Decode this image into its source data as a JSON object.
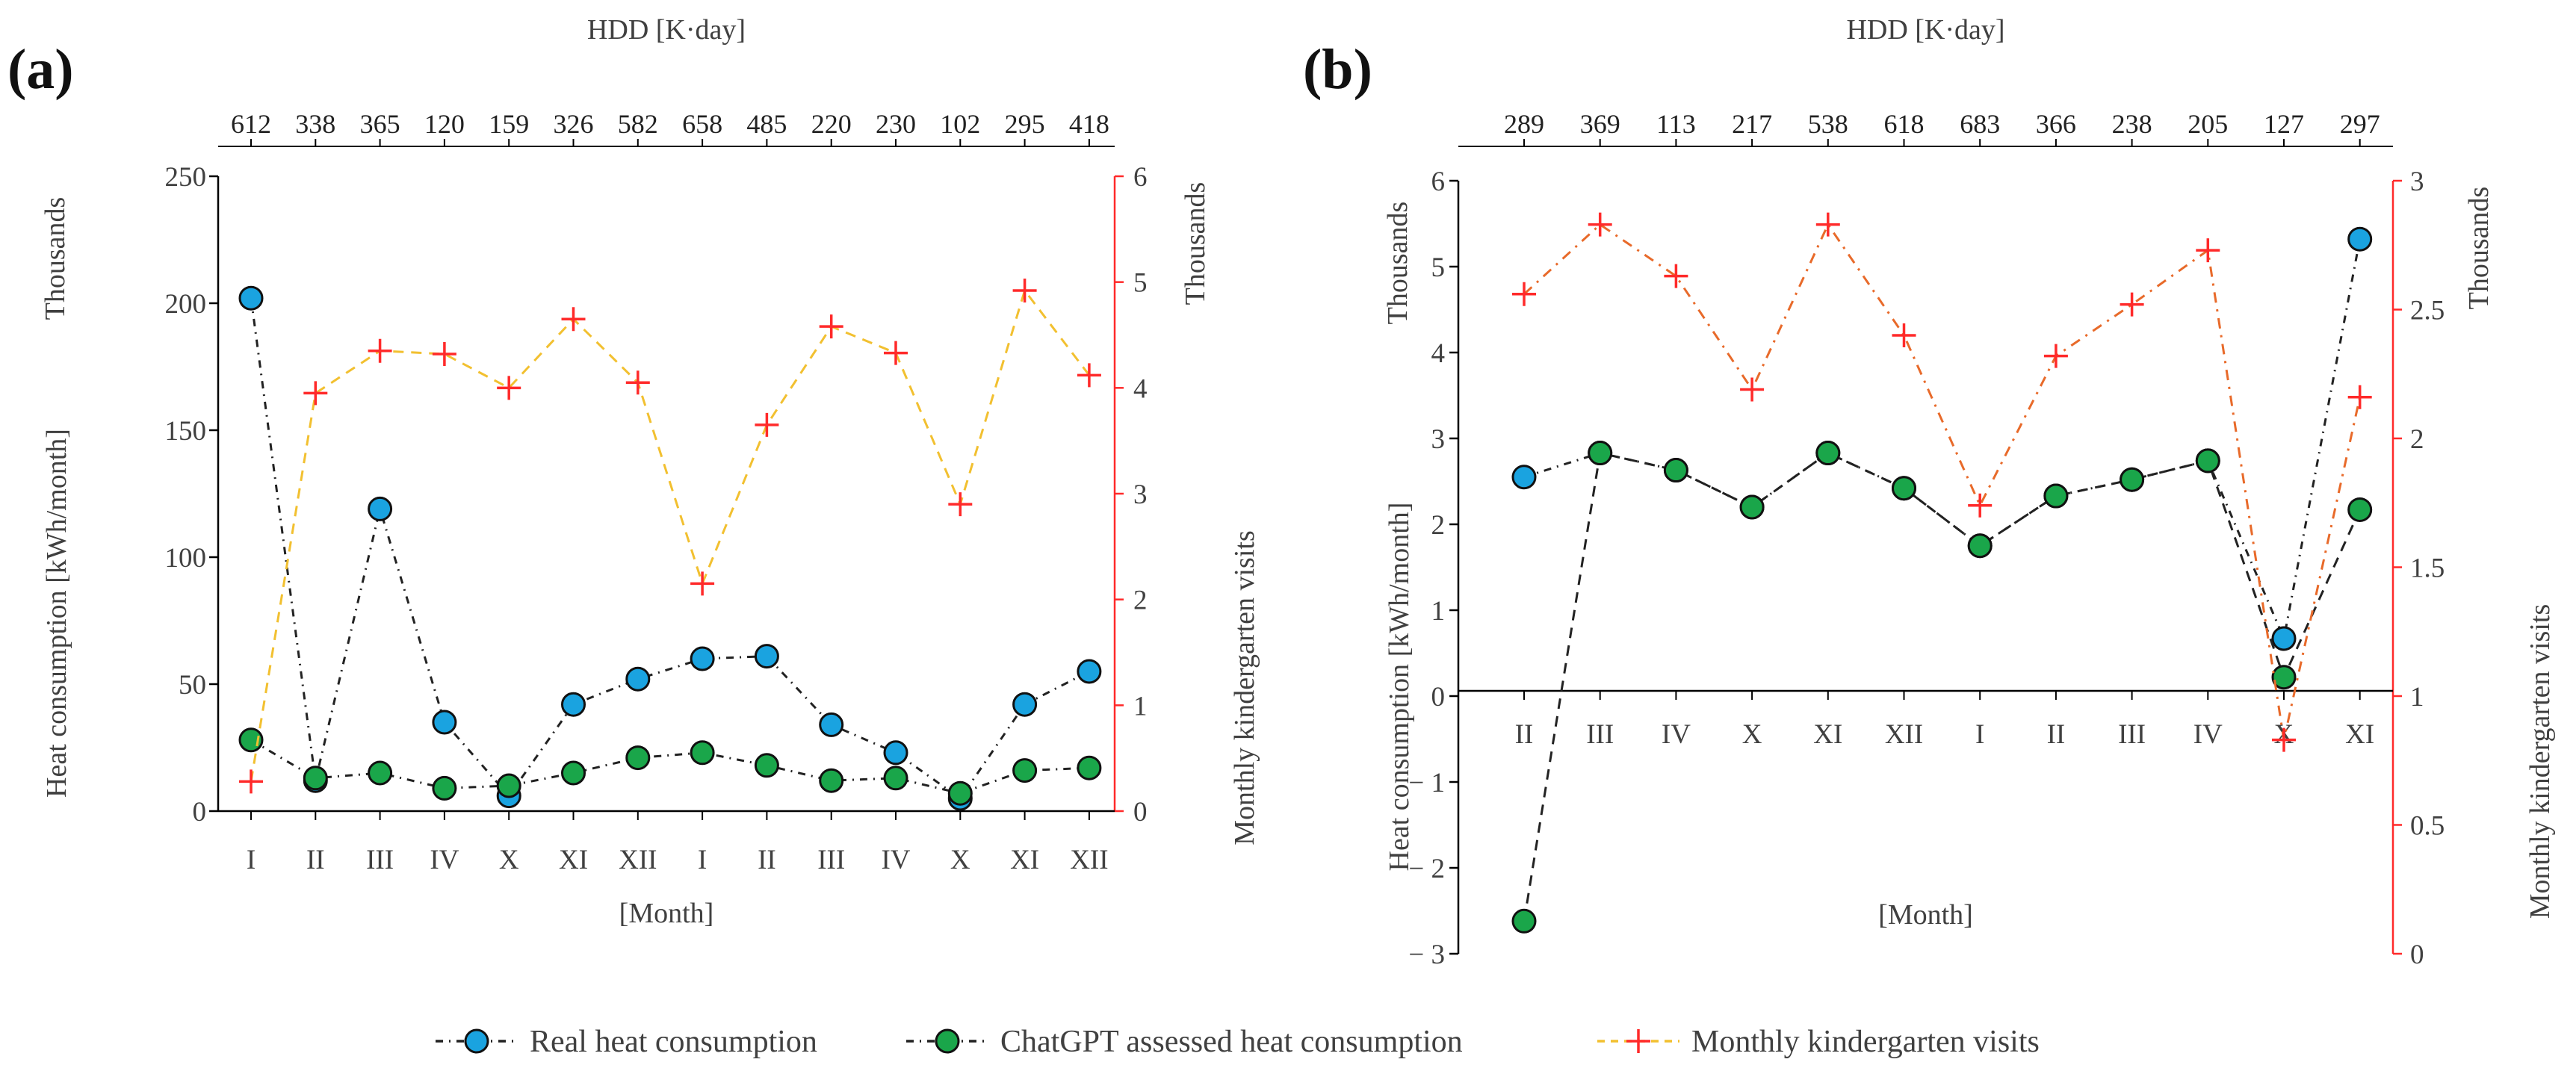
{
  "chart_data": [
    {
      "panel": "(a)",
      "type": "line",
      "top_axis_title": "HDD [K·day]",
      "top_axis_values": [
        "612",
        "338",
        "365",
        "120",
        "159",
        "326",
        "582",
        "658",
        "485",
        "220",
        "230",
        "102",
        "295",
        "418"
      ],
      "categories": [
        "I",
        "II",
        "III",
        "IV",
        "X",
        "XI",
        "XII",
        "I",
        "II",
        "III",
        "IV",
        "X",
        "XI",
        "XII"
      ],
      "xlabel": "[Month]",
      "ylabel_left": "Heat consumption [kWh/month]",
      "ylabel_left_unit": "Thousands",
      "ylim_left": [
        0,
        250
      ],
      "yticks_left": [
        "0",
        "50",
        "100",
        "150",
        "200",
        "250"
      ],
      "ylabel_right": "Monthly kindergarten visits",
      "ylabel_right_unit": "Thousands",
      "ylim_right": [
        0,
        6
      ],
      "yticks_right": [
        "0",
        "1",
        "2",
        "3",
        "4",
        "5",
        "6"
      ],
      "series": [
        {
          "name": "Real heat consumption",
          "axis": "left",
          "color": "#1aa3e0",
          "values": [
            202,
            12,
            119,
            35,
            6,
            42,
            52,
            60,
            61,
            34,
            23,
            5,
            42,
            55
          ]
        },
        {
          "name": "ChatGPT assessed heat consumption",
          "axis": "left",
          "color": "#1aa64a",
          "values": [
            28,
            13,
            15,
            9,
            10,
            15,
            21,
            23,
            18,
            12,
            13,
            7,
            16,
            17
          ]
        },
        {
          "name": "Monthly kindergarten visits",
          "axis": "right",
          "color": "#f2c030",
          "values": [
            0.28,
            3.95,
            4.35,
            4.32,
            4.0,
            4.65,
            4.05,
            2.15,
            3.65,
            4.58,
            4.33,
            2.9,
            4.92,
            4.12
          ]
        }
      ]
    },
    {
      "panel": "(b)",
      "type": "line",
      "top_axis_title": "HDD [K·day]",
      "top_axis_values": [
        "289",
        "369",
        "113",
        "217",
        "538",
        "618",
        "683",
        "366",
        "238",
        "205",
        "127",
        "297"
      ],
      "categories": [
        "II",
        "III",
        "IV",
        "X",
        "XI",
        "XII",
        "I",
        "II",
        "III",
        "IV",
        "X",
        "XI"
      ],
      "xlabel": "[Month]",
      "ylabel_left": "Heat consumption [kWh/month]",
      "ylabel_left_unit": "Thousands",
      "ylim_left": [
        -3,
        6
      ],
      "yticks_left": [
        "− 3",
        "− 2",
        "− 1",
        "0",
        "1",
        "2",
        "3",
        "4",
        "5",
        "6"
      ],
      "ylabel_right": "Monthly kindergarten visits",
      "ylabel_right_unit": "Thousands",
      "ylim_right": [
        0,
        3
      ],
      "yticks_right": [
        "0",
        "0.5",
        "1",
        "1.5",
        "2",
        "2.5",
        "3"
      ],
      "series": [
        {
          "name": "Real heat consumption",
          "axis": "left",
          "color": "#1aa3e0",
          "values": [
            2.55,
            2.83,
            2.63,
            2.2,
            2.83,
            2.42,
            1.75,
            2.33,
            2.52,
            2.74,
            0.67,
            5.32
          ]
        },
        {
          "name": "ChatGPT assessed heat consumption",
          "axis": "left",
          "color": "#1aa64a",
          "values": [
            -2.62,
            2.83,
            2.63,
            2.2,
            2.83,
            2.42,
            1.75,
            2.33,
            2.52,
            2.74,
            0.22,
            2.17
          ]
        },
        {
          "name": "Monthly kindergarten visits",
          "axis": "right",
          "color": "#e86a2a",
          "values": [
            2.56,
            2.83,
            2.63,
            2.19,
            2.83,
            2.4,
            1.74,
            2.32,
            2.52,
            2.73,
            0.83,
            2.16
          ]
        }
      ]
    }
  ],
  "legend": {
    "items": [
      {
        "label": "Real heat consumption",
        "marker": "circle",
        "color": "#1aa3e0"
      },
      {
        "label": "ChatGPT assessed heat consumption",
        "marker": "circle",
        "color": "#1aa64a"
      },
      {
        "label": "Monthly kindergarten visits",
        "marker": "cross",
        "color": "#f2c030"
      }
    ]
  },
  "colors": {
    "real": "#1aa3e0",
    "chatgpt": "#1aa64a",
    "visits_a": "#f2c030",
    "visits_b": "#e86a2a",
    "right_axis": "#ff2a2a",
    "axis": "#000000"
  }
}
